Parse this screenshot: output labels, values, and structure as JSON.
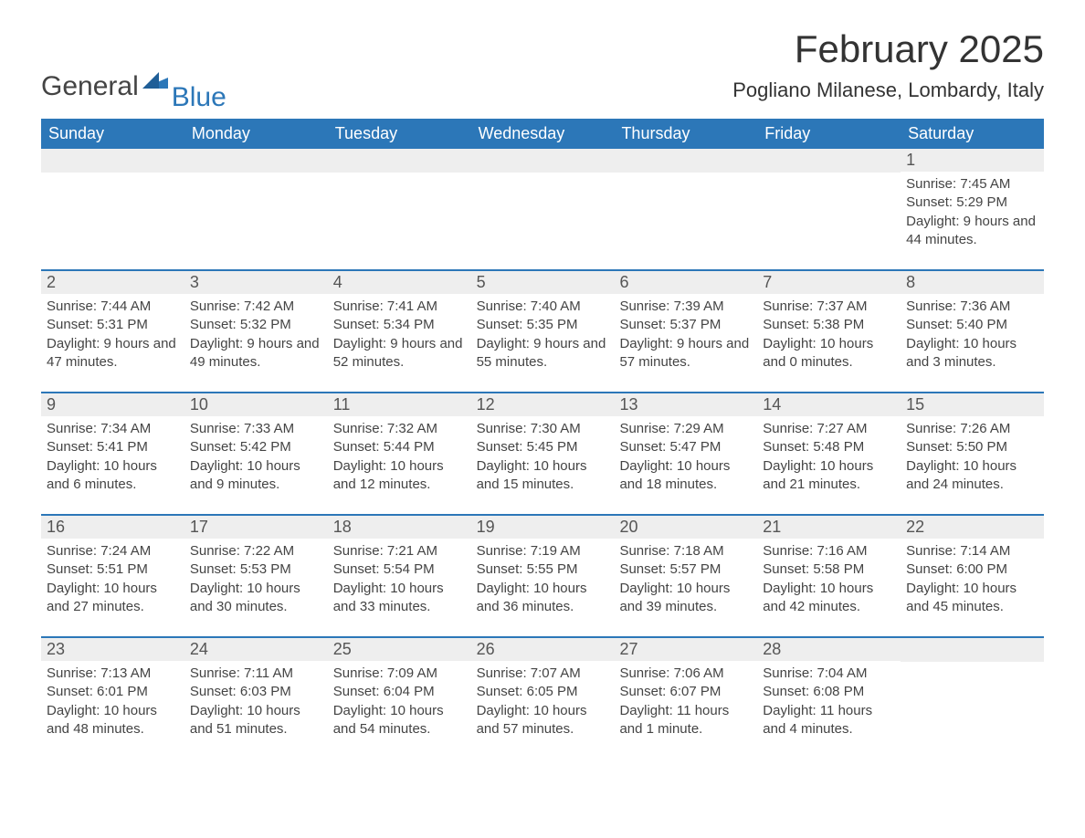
{
  "logo": {
    "text1": "General",
    "text2": "Blue",
    "accent": "#2c77b8"
  },
  "title": "February 2025",
  "location": "Pogliano Milanese, Lombardy, Italy",
  "colors": {
    "header_bg": "#2c77b8",
    "header_text": "#ffffff",
    "daynum_bg": "#eeeeee",
    "week_divider": "#2c77b8",
    "body_text": "#444444",
    "background": "#ffffff"
  },
  "fonts": {
    "title_size_pt": 32,
    "location_size_pt": 17,
    "header_size_pt": 14,
    "body_size_pt": 11
  },
  "weekdays": [
    "Sunday",
    "Monday",
    "Tuesday",
    "Wednesday",
    "Thursday",
    "Friday",
    "Saturday"
  ],
  "calendar": {
    "type": "month-grid",
    "start_weekday_index": 6,
    "days_in_month": 28,
    "days": [
      {
        "n": 1,
        "sunrise": "7:45 AM",
        "sunset": "5:29 PM",
        "daylight": "9 hours and 44 minutes."
      },
      {
        "n": 2,
        "sunrise": "7:44 AM",
        "sunset": "5:31 PM",
        "daylight": "9 hours and 47 minutes."
      },
      {
        "n": 3,
        "sunrise": "7:42 AM",
        "sunset": "5:32 PM",
        "daylight": "9 hours and 49 minutes."
      },
      {
        "n": 4,
        "sunrise": "7:41 AM",
        "sunset": "5:34 PM",
        "daylight": "9 hours and 52 minutes."
      },
      {
        "n": 5,
        "sunrise": "7:40 AM",
        "sunset": "5:35 PM",
        "daylight": "9 hours and 55 minutes."
      },
      {
        "n": 6,
        "sunrise": "7:39 AM",
        "sunset": "5:37 PM",
        "daylight": "9 hours and 57 minutes."
      },
      {
        "n": 7,
        "sunrise": "7:37 AM",
        "sunset": "5:38 PM",
        "daylight": "10 hours and 0 minutes."
      },
      {
        "n": 8,
        "sunrise": "7:36 AM",
        "sunset": "5:40 PM",
        "daylight": "10 hours and 3 minutes."
      },
      {
        "n": 9,
        "sunrise": "7:34 AM",
        "sunset": "5:41 PM",
        "daylight": "10 hours and 6 minutes."
      },
      {
        "n": 10,
        "sunrise": "7:33 AM",
        "sunset": "5:42 PM",
        "daylight": "10 hours and 9 minutes."
      },
      {
        "n": 11,
        "sunrise": "7:32 AM",
        "sunset": "5:44 PM",
        "daylight": "10 hours and 12 minutes."
      },
      {
        "n": 12,
        "sunrise": "7:30 AM",
        "sunset": "5:45 PM",
        "daylight": "10 hours and 15 minutes."
      },
      {
        "n": 13,
        "sunrise": "7:29 AM",
        "sunset": "5:47 PM",
        "daylight": "10 hours and 18 minutes."
      },
      {
        "n": 14,
        "sunrise": "7:27 AM",
        "sunset": "5:48 PM",
        "daylight": "10 hours and 21 minutes."
      },
      {
        "n": 15,
        "sunrise": "7:26 AM",
        "sunset": "5:50 PM",
        "daylight": "10 hours and 24 minutes."
      },
      {
        "n": 16,
        "sunrise": "7:24 AM",
        "sunset": "5:51 PM",
        "daylight": "10 hours and 27 minutes."
      },
      {
        "n": 17,
        "sunrise": "7:22 AM",
        "sunset": "5:53 PM",
        "daylight": "10 hours and 30 minutes."
      },
      {
        "n": 18,
        "sunrise": "7:21 AM",
        "sunset": "5:54 PM",
        "daylight": "10 hours and 33 minutes."
      },
      {
        "n": 19,
        "sunrise": "7:19 AM",
        "sunset": "5:55 PM",
        "daylight": "10 hours and 36 minutes."
      },
      {
        "n": 20,
        "sunrise": "7:18 AM",
        "sunset": "5:57 PM",
        "daylight": "10 hours and 39 minutes."
      },
      {
        "n": 21,
        "sunrise": "7:16 AM",
        "sunset": "5:58 PM",
        "daylight": "10 hours and 42 minutes."
      },
      {
        "n": 22,
        "sunrise": "7:14 AM",
        "sunset": "6:00 PM",
        "daylight": "10 hours and 45 minutes."
      },
      {
        "n": 23,
        "sunrise": "7:13 AM",
        "sunset": "6:01 PM",
        "daylight": "10 hours and 48 minutes."
      },
      {
        "n": 24,
        "sunrise": "7:11 AM",
        "sunset": "6:03 PM",
        "daylight": "10 hours and 51 minutes."
      },
      {
        "n": 25,
        "sunrise": "7:09 AM",
        "sunset": "6:04 PM",
        "daylight": "10 hours and 54 minutes."
      },
      {
        "n": 26,
        "sunrise": "7:07 AM",
        "sunset": "6:05 PM",
        "daylight": "10 hours and 57 minutes."
      },
      {
        "n": 27,
        "sunrise": "7:06 AM",
        "sunset": "6:07 PM",
        "daylight": "11 hours and 1 minute."
      },
      {
        "n": 28,
        "sunrise": "7:04 AM",
        "sunset": "6:08 PM",
        "daylight": "11 hours and 4 minutes."
      }
    ],
    "labels": {
      "sunrise": "Sunrise",
      "sunset": "Sunset",
      "daylight": "Daylight"
    }
  }
}
